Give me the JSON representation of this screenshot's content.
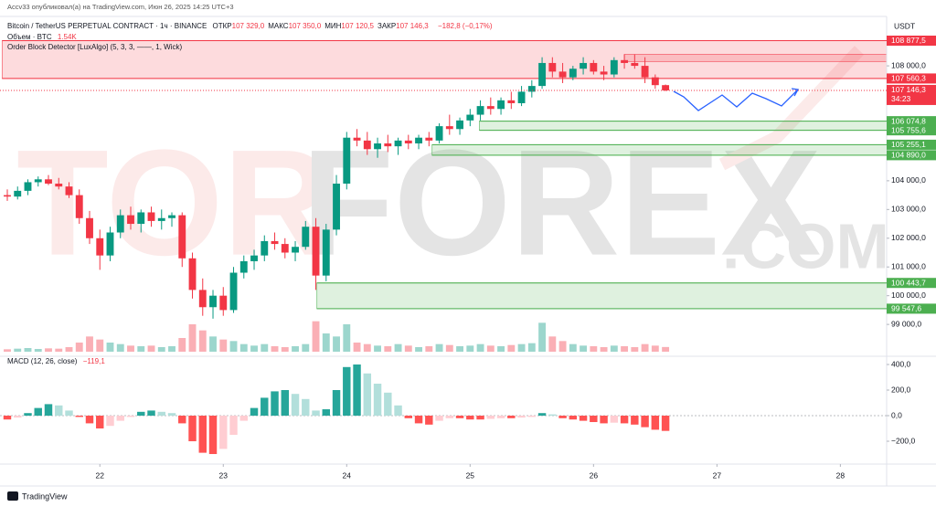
{
  "header": {
    "publisher": "Accv33 опубликовал(а) на TradingView.com, Июн 26, 2025 14:25 UTC+3",
    "currency": "USDT",
    "symbol": "Bitcoin / TetherUS PERPETUAL CONTRACT · 1ч · BINANCE",
    "ohlc": [
      {
        "key": "ОТКР",
        "value": "107 329,0"
      },
      {
        "key": "МАКС",
        "value": "107 350,0"
      },
      {
        "key": "МИН",
        "value": "107 120,5"
      },
      {
        "key": "ЗАКР",
        "value": "107 146,3"
      }
    ],
    "change": "−182,8 (−0,17%)",
    "volume_label": "Объем · BTC",
    "volume_value": "1.54K",
    "indicator": "Order Block Detector [LuxAlgo] (5, 3, 3, ——, 1, Wick)"
  },
  "watermark": {
    "left": "TOR",
    "main": "FOREX",
    ".com": ".COM"
  },
  "footer": "TradingView",
  "chart_data": [
    {
      "type": "candlestick",
      "up_color": "#089981",
      "down_color": "#f23645",
      "xlim": [
        -0.71,
        85.5
      ],
      "ylim": [
        98050,
        109720
      ],
      "xticks": [
        {
          "value": 9,
          "label": "22"
        },
        {
          "value": 21,
          "label": "23"
        },
        {
          "value": 33,
          "label": "24"
        },
        {
          "value": 45,
          "label": "25"
        },
        {
          "value": 57,
          "label": "26"
        },
        {
          "value": 69,
          "label": "27"
        },
        {
          "value": 81,
          "label": "28"
        }
      ],
      "yticks": [
        {
          "value": 108000,
          "label": "108 000,0"
        },
        {
          "value": 104000,
          "label": "104 000,0"
        },
        {
          "value": 103000,
          "label": "103 000,0"
        },
        {
          "value": 102000,
          "label": "102 000,0"
        },
        {
          "value": 101000,
          "label": "101 000,0"
        },
        {
          "value": 100000,
          "label": "100 000,0"
        },
        {
          "value": 99000,
          "label": "99 000,0"
        }
      ],
      "candles": [
        [
          103500,
          103700,
          103300,
          103450
        ],
        [
          103450,
          103800,
          103350,
          103650
        ],
        [
          103650,
          104050,
          103500,
          103950
        ],
        [
          103950,
          104150,
          103800,
          104050
        ],
        [
          104050,
          104200,
          103850,
          103900
        ],
        [
          103900,
          104100,
          103700,
          103800
        ],
        [
          103800,
          103950,
          103400,
          103500
        ],
        [
          103500,
          103700,
          102500,
          102700
        ],
        [
          102700,
          102950,
          101800,
          102000
        ],
        [
          102000,
          102300,
          100900,
          101400
        ],
        [
          101400,
          102400,
          101200,
          102200
        ],
        [
          102200,
          103000,
          102000,
          102800
        ],
        [
          102800,
          103100,
          102300,
          102500
        ],
        [
          102500,
          103000,
          102200,
          102900
        ],
        [
          102900,
          103100,
          102400,
          102600
        ],
        [
          102600,
          103000,
          102300,
          102700
        ],
        [
          102700,
          102900,
          102400,
          102800
        ],
        [
          102800,
          102900,
          101000,
          101300
        ],
        [
          101300,
          101500,
          99900,
          100200
        ],
        [
          100200,
          100600,
          99300,
          99600
        ],
        [
          99600,
          100200,
          99200,
          100000
        ],
        [
          100000,
          100300,
          99300,
          99500
        ],
        [
          99500,
          101000,
          99400,
          100800
        ],
        [
          100800,
          101400,
          100600,
          101200
        ],
        [
          101200,
          101600,
          100900,
          101400
        ],
        [
          101400,
          102100,
          101200,
          101900
        ],
        [
          101900,
          102200,
          101600,
          101800
        ],
        [
          101800,
          102000,
          101300,
          101500
        ],
        [
          101500,
          101900,
          101200,
          101700
        ],
        [
          101700,
          102600,
          101600,
          102400
        ],
        [
          102400,
          102700,
          100200,
          100700
        ],
        [
          100700,
          102500,
          100500,
          102300
        ],
        [
          102300,
          104200,
          102100,
          103900
        ],
        [
          103900,
          105700,
          103700,
          105500
        ],
        [
          105500,
          105800,
          105200,
          105400
        ],
        [
          105400,
          105700,
          104900,
          105100
        ],
        [
          105100,
          105500,
          104800,
          105300
        ],
        [
          105300,
          105600,
          105000,
          105200
        ],
        [
          105200,
          105500,
          104900,
          105400
        ],
        [
          105400,
          105600,
          105100,
          105300
        ],
        [
          105300,
          105600,
          105100,
          105500
        ],
        [
          105500,
          105700,
          105200,
          105400
        ],
        [
          105400,
          106000,
          105300,
          105900
        ],
        [
          105900,
          106300,
          105600,
          105800
        ],
        [
          105800,
          106200,
          105600,
          106100
        ],
        [
          106100,
          106500,
          105900,
          106300
        ],
        [
          106300,
          106800,
          106100,
          106600
        ],
        [
          106600,
          106900,
          106300,
          106500
        ],
        [
          106500,
          106900,
          106300,
          106800
        ],
        [
          106800,
          107100,
          106500,
          106700
        ],
        [
          106700,
          107300,
          106600,
          107100
        ],
        [
          107100,
          107500,
          106900,
          107300
        ],
        [
          107300,
          108300,
          107200,
          108100
        ],
        [
          108100,
          108300,
          107600,
          107800
        ],
        [
          107800,
          108100,
          107400,
          107600
        ],
        [
          107600,
          108000,
          107500,
          107900
        ],
        [
          107900,
          108300,
          107700,
          108100
        ],
        [
          108100,
          108200,
          107700,
          107800
        ],
        [
          107800,
          108000,
          107500,
          107700
        ],
        [
          107700,
          108300,
          107600,
          108200
        ],
        [
          108200,
          108400,
          107900,
          108100
        ],
        [
          108100,
          108400,
          107900,
          108000
        ],
        [
          108000,
          108300,
          107400,
          107600
        ],
        [
          107600,
          107700,
          107200,
          107329
        ],
        [
          107329,
          107350,
          107120.5,
          107146.3
        ]
      ],
      "volume": {
        "ylim": [
          0,
          30000
        ],
        "values": [
          800,
          1000,
          1200,
          900,
          1100,
          1000,
          1500,
          3000,
          5000,
          4000,
          3000,
          2500,
          2000,
          1800,
          2000,
          1500,
          1800,
          4500,
          9000,
          7000,
          5000,
          4000,
          3500,
          2500,
          2000,
          2500,
          1800,
          1500,
          1800,
          2500,
          10000,
          6000,
          5000,
          9000,
          3000,
          2500,
          2000,
          1800,
          2500,
          2000,
          1500,
          1800,
          2500,
          2200,
          1800,
          2000,
          2500,
          2000,
          1800,
          2200,
          2500,
          2800,
          9500,
          5000,
          3500,
          2500,
          2000,
          1800,
          1500,
          2000,
          1800,
          1500,
          2500,
          2000,
          1540
        ]
      },
      "zones": [
        {
          "top": {
            "value": 108877.5,
            "label": "108 877,5"
          },
          "bottom": {
            "value": 107560.3,
            "label": "107 560,3"
          },
          "start": 0,
          "color": "#f23645"
        },
        {
          "top": {
            "value": 108400,
            "label": null
          },
          "bottom": {
            "value": 108150,
            "label": null
          },
          "start": 60.5,
          "color": "#f23645"
        },
        {
          "top": {
            "value": 106074.8,
            "label": "106 074,8"
          },
          "bottom": {
            "value": 105755.6,
            "label": "105 755,6"
          },
          "start": 46.4,
          "color": "#4caf50"
        },
        {
          "top": {
            "value": 105255.1,
            "label": "105 255,1"
          },
          "bottom": {
            "value": 104890,
            "label": "104 890,0"
          },
          "start": 41.8,
          "color": "#4caf50"
        },
        {
          "top": {
            "value": 100443.7,
            "label": "100 443,7"
          },
          "bottom": {
            "value": 99547.6,
            "label": "99 547,6"
          },
          "start": 30.6,
          "color": "#4caf50"
        }
      ],
      "last_price": {
        "value": 107146.3,
        "label": "107 146,3",
        "countdown": "34:23"
      }
    },
    {
      "type": "macd",
      "title": "MACD (12, 26, close)",
      "title_value": "−119,1",
      "xlim": [
        -0.71,
        85.5
      ],
      "ylim": [
        -357,
        450
      ],
      "yticks": [
        {
          "value": 400,
          "label": "400,0"
        },
        {
          "value": 200,
          "label": "200,0"
        },
        {
          "value": 0,
          "label": "0,0"
        },
        {
          "value": -200,
          "label": "−200,0"
        }
      ],
      "colors": {
        "pos_up": "#26a69a",
        "pos_down": "#b2dfdb",
        "neg_down": "#ff5252",
        "neg_up": "#ffcdd2"
      },
      "values": [
        -30,
        -15,
        20,
        60,
        90,
        80,
        40,
        -10,
        -60,
        -100,
        -80,
        -40,
        -10,
        30,
        40,
        30,
        20,
        -60,
        -200,
        -290,
        -300,
        -260,
        -150,
        -40,
        60,
        140,
        190,
        200,
        170,
        130,
        40,
        50,
        200,
        380,
        400,
        330,
        250,
        180,
        80,
        -20,
        -60,
        -70,
        -40,
        -20,
        -20,
        -30,
        -30,
        -25,
        -20,
        -20,
        -15,
        -10,
        20,
        10,
        -20,
        -30,
        -40,
        -50,
        -60,
        -55,
        -60,
        -70,
        -90,
        -110,
        -119.1
      ]
    }
  ]
}
